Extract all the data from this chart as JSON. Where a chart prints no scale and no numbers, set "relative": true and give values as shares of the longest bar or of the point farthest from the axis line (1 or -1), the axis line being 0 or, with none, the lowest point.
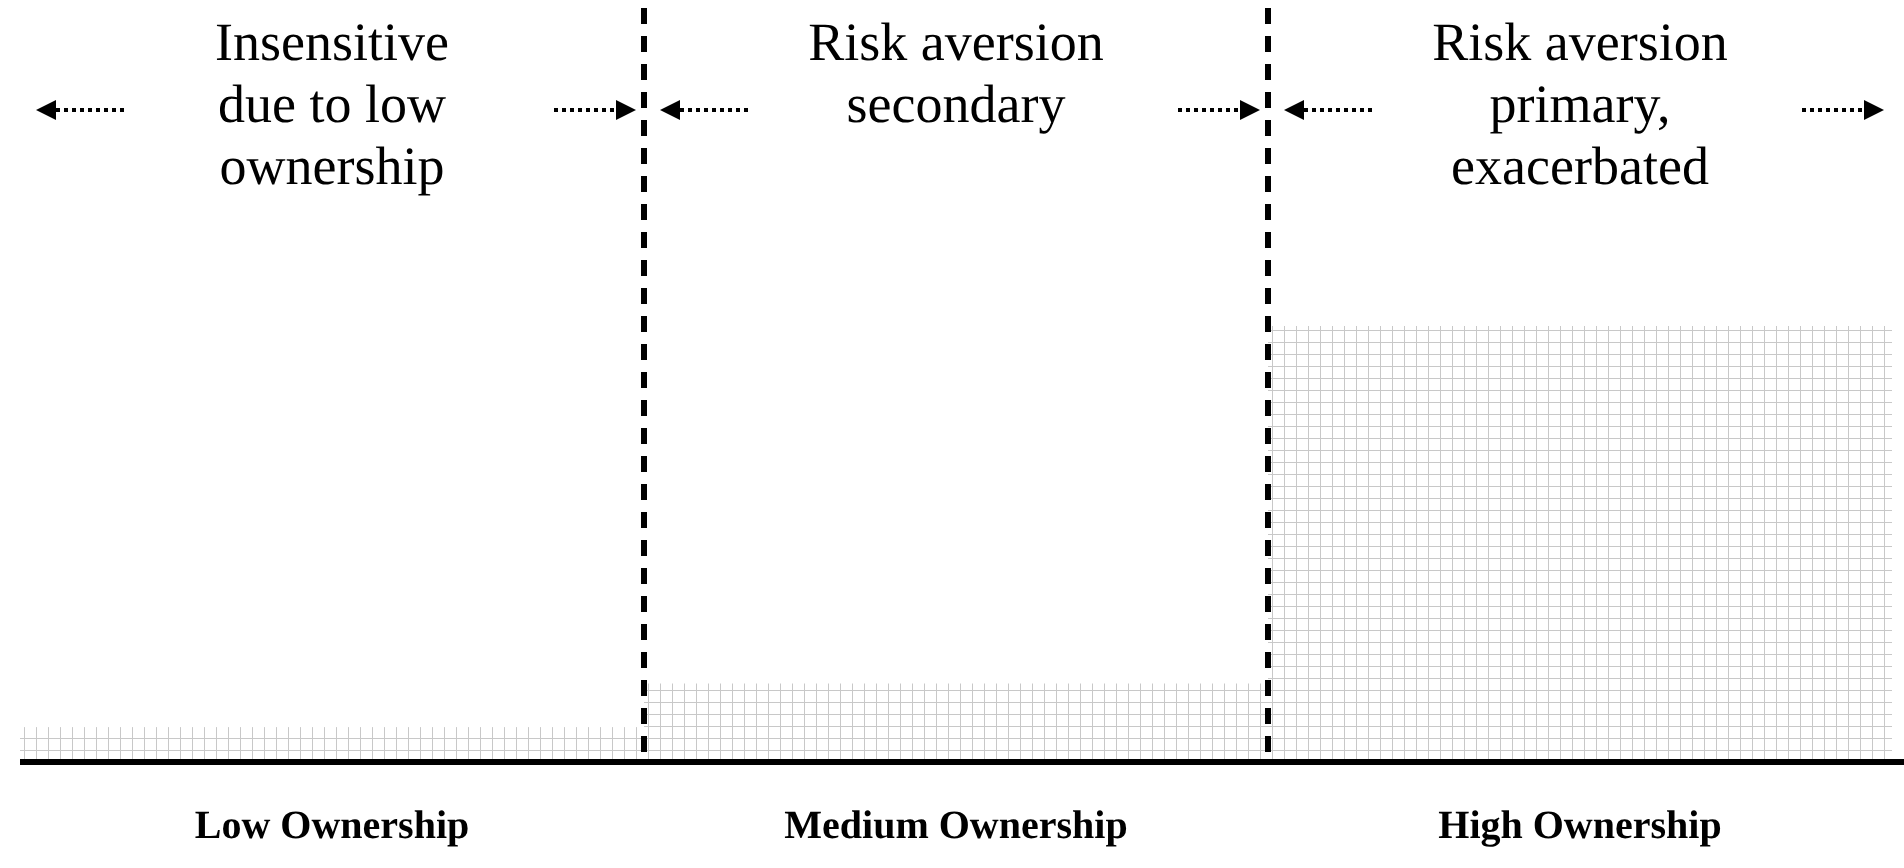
{
  "chart_data": {
    "type": "bar",
    "relative": true,
    "categories": [
      "Low Ownership",
      "Medium Ownership",
      "High Ownership"
    ],
    "values": [
      0.08,
      0.18,
      1
    ],
    "color": "#c8c8c8",
    "annotations": [
      "Insensitive\ndue to low\nownership",
      "Risk aversion\nsecondary",
      "Risk aversion\nprimary,\nexacerbated"
    ]
  }
}
